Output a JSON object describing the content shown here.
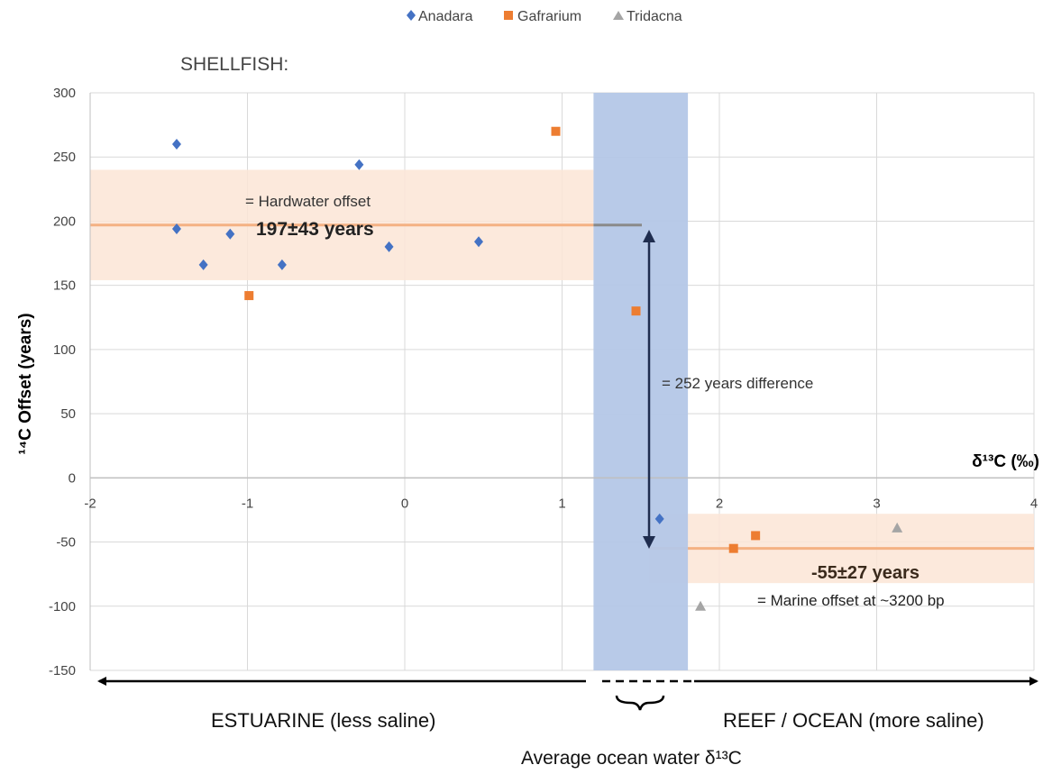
{
  "chart_data": {
    "type": "scatter",
    "xlabel": "δ¹³C (‰)",
    "ylabel": "¹⁴C Offset (years)",
    "xlim": [
      -2,
      4
    ],
    "ylim": [
      -150,
      300
    ],
    "x_ticks": [
      "-2",
      "-1",
      "0",
      "1",
      "2",
      "3",
      "4"
    ],
    "y_ticks": [
      "300",
      "250",
      "200",
      "150",
      "100",
      "50",
      "0",
      "-50",
      "-100",
      "-150"
    ],
    "grid": true,
    "legend_position": "top-center",
    "series": [
      {
        "name": "Anadara",
        "marker": "diamond",
        "color": "#4472c4",
        "points": [
          [
            -1.45,
            260
          ],
          [
            -1.45,
            194
          ],
          [
            -1.28,
            166
          ],
          [
            -1.11,
            190
          ],
          [
            -0.78,
            166
          ],
          [
            -0.29,
            244
          ],
          [
            -0.1,
            180
          ],
          [
            0.47,
            184
          ],
          [
            1.62,
            -32
          ]
        ]
      },
      {
        "name": "Gafrarium",
        "marker": "square",
        "color": "#ed7d31",
        "points": [
          [
            -0.99,
            142
          ],
          [
            0.96,
            270
          ],
          [
            1.47,
            130
          ],
          [
            2.09,
            -55
          ],
          [
            2.23,
            -45
          ]
        ]
      },
      {
        "name": "Tridacna",
        "marker": "triangle",
        "color": "#a5a5a5",
        "points": [
          [
            1.88,
            -100
          ],
          [
            3.13,
            -39
          ]
        ]
      }
    ],
    "bands": [
      {
        "kind": "horizontal",
        "y_center": 197,
        "y_half": 43,
        "x_from": -2,
        "x_to": 1.2,
        "color": "#fbe5d6",
        "line_color": "#f4b183"
      },
      {
        "kind": "horizontal",
        "y_center": -55,
        "y_half": 27,
        "x_from": 1.55,
        "x_to": 4,
        "color": "#fbe5d6",
        "line_color": "#f4b183"
      },
      {
        "kind": "vertical",
        "x_from": 1.2,
        "x_to": 1.8,
        "color": "#b4c7e7"
      }
    ],
    "annotations": {
      "shellfish": "SHELLFISH:",
      "hardwater_label": "= Hardwater offset",
      "hardwater_value": "197±43 years",
      "difference": "= 252 years difference",
      "marine_value": "-55±27 years",
      "marine_label": "= Marine offset at  ~3200 bp",
      "estuarine": "ESTUARINE  (less saline)",
      "reef": "REEF / OCEAN (more saline)",
      "ocean_avg": "Average ocean water δ¹³C"
    }
  }
}
